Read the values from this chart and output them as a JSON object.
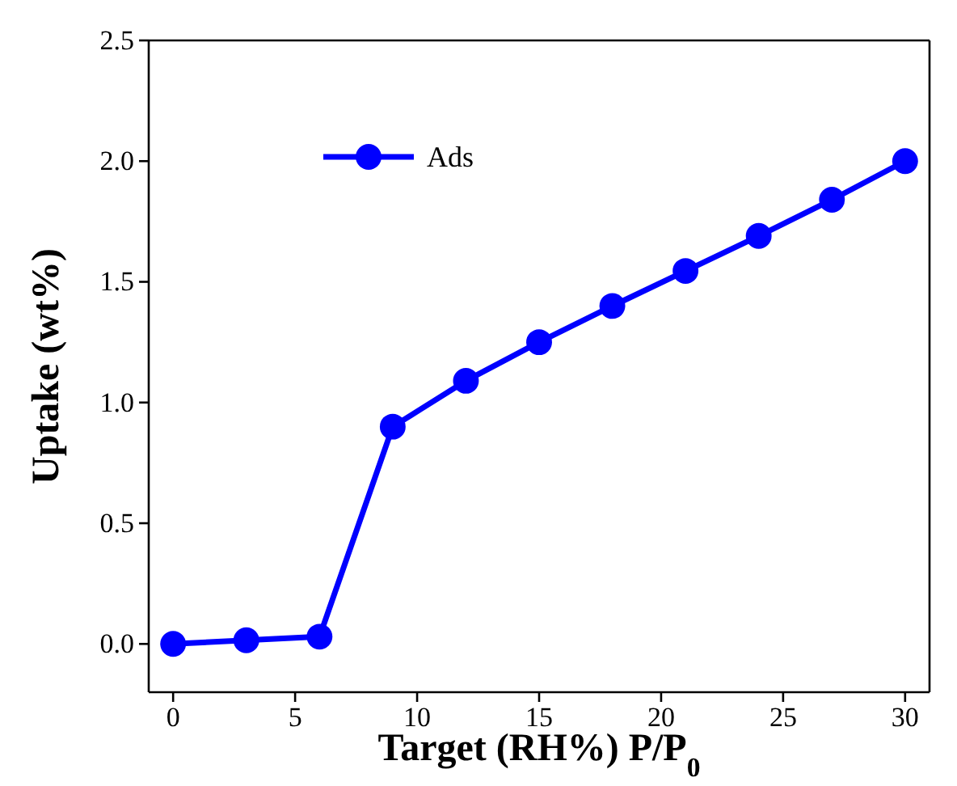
{
  "chart_data": {
    "type": "line",
    "xlabel": "Target (RH%) P/P$_{0}$",
    "ylabel": "Uptake (wt%)",
    "x": [
      0,
      3,
      6,
      9,
      12,
      15,
      18,
      21,
      24,
      27,
      30
    ],
    "series": [
      {
        "name": "Ads",
        "color": "#0000ff",
        "values": [
          0.0,
          0.015,
          0.03,
          0.9,
          1.09,
          1.25,
          1.4,
          1.545,
          1.69,
          1.84,
          2.0
        ]
      }
    ],
    "xlim": [
      -1,
      31
    ],
    "xticks": [
      0,
      5,
      10,
      15,
      20,
      25,
      30
    ],
    "ylim": [
      -0.2,
      2.5
    ],
    "yticks": [
      {
        "value": 0,
        "label": "0.0"
      },
      {
        "value": 0.5,
        "label": "0.5"
      },
      {
        "value": 1,
        "label": "1.0"
      },
      {
        "value": 1.5,
        "label": "1.5"
      },
      {
        "value": 2,
        "label": "2.0"
      },
      {
        "value": 2.5,
        "label": "2.5"
      }
    ],
    "marker": "circle",
    "line_style": "solid",
    "legend": "top left",
    "grid": false
  }
}
